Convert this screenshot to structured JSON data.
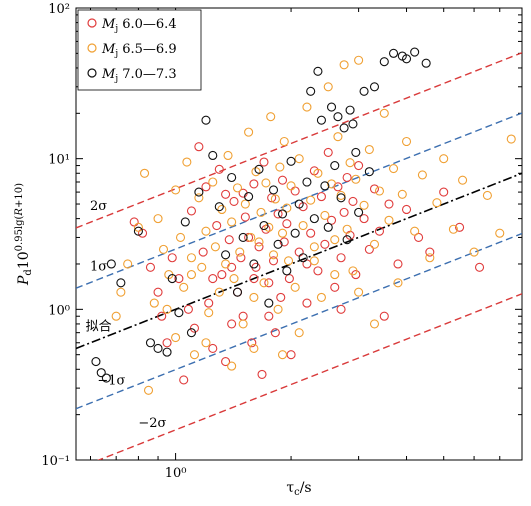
{
  "chart_data": {
    "type": "scatter",
    "xscale": "log",
    "yscale": "log",
    "xlim": [
      0.55,
      8.0
    ],
    "ylim": [
      0.1,
      100
    ],
    "xticks": [
      {
        "value": 1,
        "label": "10⁰"
      }
    ],
    "yticks": [
      {
        "value": 0.1,
        "label": "10⁻¹"
      },
      {
        "value": 1,
        "label": "10⁰"
      },
      {
        "value": 10,
        "label": "10¹"
      },
      {
        "value": 100,
        "label": "10²"
      }
    ],
    "xlabel": "τc/s",
    "ylabel": "Pd10^{0.95lg(R+10)}",
    "legend": {
      "position": "top-left",
      "entries": [
        {
          "series": "m1",
          "label": "Mj 6.0—6.4"
        },
        {
          "series": "m2",
          "label": "Mj 6.5—6.9"
        },
        {
          "series": "m3",
          "label": "Mj 7.0—7.3"
        }
      ]
    },
    "lines": [
      {
        "id": "plus2",
        "label": "2σ",
        "style": "dashed",
        "color": "#d93a3a",
        "intercept_log": 0.8,
        "slope": 1.0
      },
      {
        "id": "plus1",
        "label": "1σ",
        "style": "dashed",
        "color": "#3c6fb0",
        "intercept_log": 0.4,
        "slope": 1.0
      },
      {
        "id": "fit",
        "label": "拟合",
        "style": "dashdot",
        "color": "#000000",
        "intercept_log": 0.0,
        "slope": 1.0
      },
      {
        "id": "minus1",
        "label": "−1σ",
        "style": "dashed",
        "color": "#3c6fb0",
        "intercept_log": -0.4,
        "slope": 1.0
      },
      {
        "id": "minus2",
        "label": "−2σ",
        "style": "dashed",
        "color": "#d93a3a",
        "intercept_log": -0.8,
        "slope": 1.0
      }
    ],
    "series": [
      {
        "id": "m1",
        "color": "#e03c3c",
        "points": [
          [
            0.78,
            3.8
          ],
          [
            0.82,
            3.2
          ],
          [
            0.86,
            1.9
          ],
          [
            0.9,
            1.3
          ],
          [
            0.92,
            0.9
          ],
          [
            0.95,
            0.6
          ],
          [
            0.98,
            2.2
          ],
          [
            1.02,
            1.6
          ],
          [
            1.05,
            0.34
          ],
          [
            1.08,
            1.0
          ],
          [
            1.1,
            4.5
          ],
          [
            1.12,
            0.75
          ],
          [
            1.15,
            12
          ],
          [
            1.18,
            2.4
          ],
          [
            1.2,
            6.5
          ],
          [
            1.22,
            1.1
          ],
          [
            1.25,
            0.55
          ],
          [
            1.28,
            3.6
          ],
          [
            1.3,
            8.5
          ],
          [
            1.32,
            1.7
          ],
          [
            1.35,
            0.45
          ],
          [
            1.38,
            2.9
          ],
          [
            1.4,
            0.8
          ],
          [
            1.42,
            5.2
          ],
          [
            1.45,
            1.3
          ],
          [
            1.48,
            2.2
          ],
          [
            1.5,
            0.9
          ],
          [
            1.52,
            4.1
          ],
          [
            1.55,
            3.0
          ],
          [
            1.58,
            0.6
          ],
          [
            1.6,
            6.8
          ],
          [
            1.62,
            1.9
          ],
          [
            1.65,
            2.6
          ],
          [
            1.68,
            0.37
          ],
          [
            1.7,
            9.5
          ],
          [
            1.72,
            3.4
          ],
          [
            1.75,
            1.5
          ],
          [
            1.78,
            5.5
          ],
          [
            1.8,
            2.1
          ],
          [
            1.82,
            0.7
          ],
          [
            1.85,
            4.3
          ],
          [
            1.88,
            1.2
          ],
          [
            1.9,
            7.2
          ],
          [
            1.92,
            2.8
          ],
          [
            1.95,
            3.7
          ],
          [
            1.98,
            1.6
          ],
          [
            2.0,
            0.5
          ],
          [
            2.05,
            6.1
          ],
          [
            2.1,
            2.4
          ],
          [
            2.15,
            4.8
          ],
          [
            2.2,
            1.1
          ],
          [
            2.25,
            3.2
          ],
          [
            2.3,
            8.3
          ],
          [
            2.35,
            1.8
          ],
          [
            2.4,
            5.6
          ],
          [
            2.45,
            2.7
          ],
          [
            2.5,
            11
          ],
          [
            2.55,
            3.9
          ],
          [
            2.6,
            1.4
          ],
          [
            2.65,
            6.5
          ],
          [
            2.7,
            2.2
          ],
          [
            2.75,
            4.4
          ],
          [
            2.8,
            7.5
          ],
          [
            2.85,
            3.1
          ],
          [
            2.9,
            5.2
          ],
          [
            2.95,
            1.7
          ],
          [
            3.0,
            9.0
          ],
          [
            3.1,
            4.0
          ],
          [
            3.2,
            2.5
          ],
          [
            3.3,
            6.3
          ],
          [
            3.4,
            3.3
          ],
          [
            3.5,
            0.9
          ],
          [
            3.6,
            5.0
          ],
          [
            3.8,
            2.0
          ],
          [
            4.0,
            4.6
          ],
          [
            4.3,
            3.0
          ],
          [
            4.6,
            2.4
          ],
          [
            5.0,
            6.0
          ],
          [
            5.5,
            3.5
          ],
          [
            6.2,
            1.9
          ],
          [
            1.25,
            1.6
          ],
          [
            1.4,
            1.9
          ],
          [
            1.6,
            1.6
          ],
          [
            1.75,
            0.9
          ],
          [
            2.2,
            2.0
          ],
          [
            2.7,
            1.0
          ],
          [
            1.35,
            5.8
          ],
          [
            1.5,
            5.9
          ]
        ]
      },
      {
        "id": "m2",
        "color": "#f0a033",
        "points": [
          [
            0.7,
            0.9
          ],
          [
            0.72,
            1.3
          ],
          [
            0.75,
            2.0
          ],
          [
            0.8,
            3.5
          ],
          [
            0.83,
            8.0
          ],
          [
            0.85,
            0.29
          ],
          [
            0.88,
            1.1
          ],
          [
            0.9,
            4.0
          ],
          [
            0.93,
            2.5
          ],
          [
            0.96,
            1.7
          ],
          [
            1.0,
            6.2
          ],
          [
            1.0,
            0.65
          ],
          [
            1.03,
            3.0
          ],
          [
            1.05,
            1.4
          ],
          [
            1.07,
            9.5
          ],
          [
            1.1,
            2.2
          ],
          [
            1.12,
            0.5
          ],
          [
            1.15,
            5.5
          ],
          [
            1.17,
            1.9
          ],
          [
            1.2,
            3.3
          ],
          [
            1.22,
            0.95
          ],
          [
            1.25,
            7.0
          ],
          [
            1.27,
            2.6
          ],
          [
            1.3,
            1.3
          ],
          [
            1.32,
            4.6
          ],
          [
            1.35,
            2.0
          ],
          [
            1.37,
            10.5
          ],
          [
            1.4,
            3.8
          ],
          [
            1.42,
            1.6
          ],
          [
            1.45,
            6.4
          ],
          [
            1.47,
            2.4
          ],
          [
            1.5,
            0.8
          ],
          [
            1.52,
            5.0
          ],
          [
            1.55,
            15
          ],
          [
            1.57,
            3.0
          ],
          [
            1.6,
            1.2
          ],
          [
            1.62,
            8.2
          ],
          [
            1.65,
            2.8
          ],
          [
            1.67,
            4.4
          ],
          [
            1.7,
            1.5
          ],
          [
            1.72,
            6.9
          ],
          [
            1.75,
            3.5
          ],
          [
            1.77,
            19
          ],
          [
            1.8,
            2.3
          ],
          [
            1.82,
            5.4
          ],
          [
            1.85,
            1.0
          ],
          [
            1.87,
            8.8
          ],
          [
            1.9,
            3.2
          ],
          [
            1.92,
            13
          ],
          [
            1.95,
            4.7
          ],
          [
            1.97,
            2.1
          ],
          [
            2.0,
            6.6
          ],
          [
            2.05,
            1.4
          ],
          [
            2.1,
            10
          ],
          [
            2.15,
            3.6
          ],
          [
            2.2,
            22
          ],
          [
            2.25,
            5.3
          ],
          [
            2.3,
            2.6
          ],
          [
            2.35,
            8.0
          ],
          [
            2.4,
            1.2
          ],
          [
            2.45,
            4.2
          ],
          [
            2.5,
            30
          ],
          [
            2.55,
            6.8
          ],
          [
            2.6,
            2.9
          ],
          [
            2.65,
            14
          ],
          [
            2.7,
            5.7
          ],
          [
            2.75,
            42
          ],
          [
            2.8,
            3.4
          ],
          [
            2.85,
            9.4
          ],
          [
            2.9,
            1.8
          ],
          [
            2.95,
            7.3
          ],
          [
            3.0,
            45
          ],
          [
            3.1,
            4.9
          ],
          [
            3.2,
            11.5
          ],
          [
            3.3,
            2.7
          ],
          [
            3.4,
            6.1
          ],
          [
            3.5,
            20
          ],
          [
            3.6,
            3.9
          ],
          [
            3.7,
            8.6
          ],
          [
            3.8,
            1.5
          ],
          [
            3.9,
            5.8
          ],
          [
            4.0,
            13
          ],
          [
            4.2,
            3.3
          ],
          [
            4.4,
            7.8
          ],
          [
            4.6,
            2.2
          ],
          [
            4.8,
            5.1
          ],
          [
            5.0,
            10
          ],
          [
            5.3,
            3.4
          ],
          [
            5.6,
            7.2
          ],
          [
            6.0,
            2.4
          ],
          [
            6.5,
            5.7
          ],
          [
            7.0,
            3.2
          ],
          [
            7.5,
            13.5
          ],
          [
            2.3,
            2.1
          ],
          [
            2.6,
            1.7
          ],
          [
            3.0,
            1.3
          ],
          [
            3.3,
            0.8
          ],
          [
            1.9,
            0.5
          ],
          [
            2.1,
            0.7
          ],
          [
            1.6,
            0.55
          ],
          [
            1.4,
            0.42
          ],
          [
            1.2,
            0.6
          ],
          [
            0.95,
            1.0
          ],
          [
            1.1,
            1.7
          ]
        ]
      },
      {
        "id": "m3",
        "color": "#111111",
        "points": [
          [
            0.62,
            0.45
          ],
          [
            0.64,
            0.38
          ],
          [
            0.66,
            0.35
          ],
          [
            0.68,
            2.0
          ],
          [
            0.72,
            1.5
          ],
          [
            0.8,
            3.3
          ],
          [
            0.86,
            0.6
          ],
          [
            0.9,
            0.55
          ],
          [
            0.95,
            0.52
          ],
          [
            0.98,
            1.6
          ],
          [
            1.02,
            0.95
          ],
          [
            1.06,
            3.8
          ],
          [
            1.1,
            0.7
          ],
          [
            1.15,
            6.0
          ],
          [
            1.2,
            18
          ],
          [
            1.25,
            10.5
          ],
          [
            1.3,
            4.8
          ],
          [
            1.35,
            2.3
          ],
          [
            1.4,
            7.5
          ],
          [
            1.45,
            1.3
          ],
          [
            1.5,
            3.0
          ],
          [
            1.55,
            5.6
          ],
          [
            1.6,
            2.0
          ],
          [
            1.65,
            8.5
          ],
          [
            1.7,
            3.6
          ],
          [
            1.75,
            1.1
          ],
          [
            1.8,
            6.2
          ],
          [
            1.85,
            2.7
          ],
          [
            1.9,
            4.3
          ],
          [
            1.95,
            1.8
          ],
          [
            2.0,
            9.6
          ],
          [
            2.05,
            3.2
          ],
          [
            2.1,
            5.0
          ],
          [
            2.15,
            2.2
          ],
          [
            2.2,
            7.0
          ],
          [
            2.25,
            28
          ],
          [
            2.3,
            4.0
          ],
          [
            2.35,
            38
          ],
          [
            2.4,
            18
          ],
          [
            2.45,
            6.6
          ],
          [
            2.5,
            3.5
          ],
          [
            2.55,
            22
          ],
          [
            2.6,
            9.0
          ],
          [
            2.65,
            19
          ],
          [
            2.7,
            5.5
          ],
          [
            2.75,
            16
          ],
          [
            2.8,
            2.9
          ],
          [
            2.85,
            21
          ],
          [
            2.9,
            17
          ],
          [
            2.95,
            11
          ],
          [
            3.0,
            4.4
          ],
          [
            3.1,
            28
          ],
          [
            3.2,
            8.2
          ],
          [
            3.3,
            30
          ],
          [
            3.5,
            44
          ],
          [
            3.7,
            50
          ],
          [
            3.9,
            48
          ],
          [
            4.0,
            46
          ],
          [
            4.2,
            51
          ],
          [
            4.5,
            43
          ]
        ]
      }
    ]
  }
}
